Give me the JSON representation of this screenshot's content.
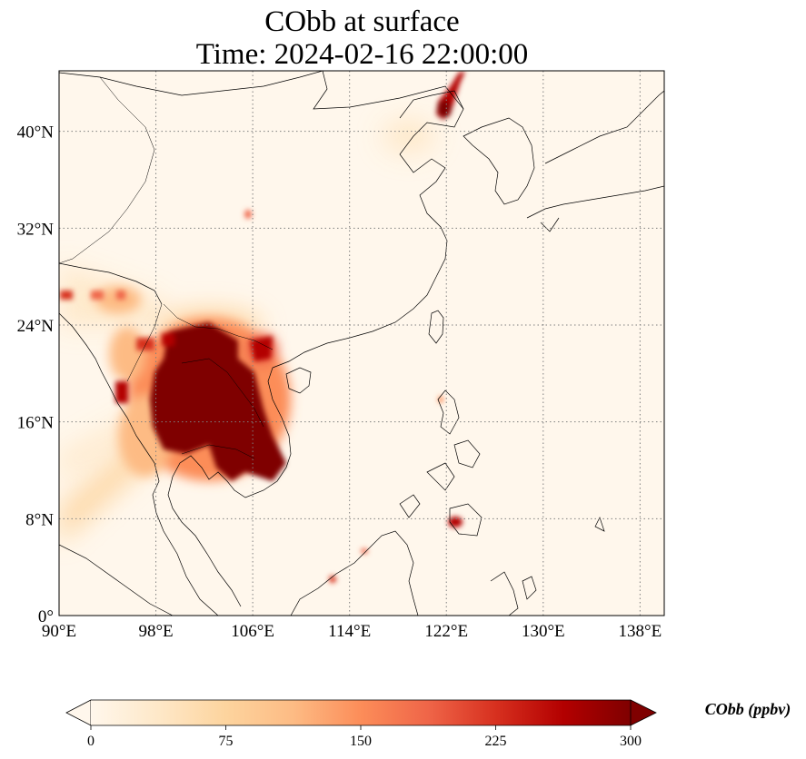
{
  "title": {
    "line1": "CObb at surface",
    "line2": "Time: 2024-02-16 22:00:00"
  },
  "map": {
    "lon_range": [
      90,
      140
    ],
    "lat_range": [
      0,
      45
    ],
    "lon_ticks": [
      {
        "value": 90,
        "label": "90°E"
      },
      {
        "value": 98,
        "label": "98°E"
      },
      {
        "value": 106,
        "label": "106°E"
      },
      {
        "value": 114,
        "label": "114°E"
      },
      {
        "value": 122,
        "label": "122°E"
      },
      {
        "value": 130,
        "label": "130°E"
      },
      {
        "value": 138,
        "label": "138°E"
      }
    ],
    "lat_ticks": [
      {
        "value": 0,
        "label": "0°"
      },
      {
        "value": 8,
        "label": "8°N"
      },
      {
        "value": 16,
        "label": "16°N"
      },
      {
        "value": 24,
        "label": "24°N"
      },
      {
        "value": 32,
        "label": "32°N"
      },
      {
        "value": 40,
        "label": "40°N"
      }
    ],
    "gridlines": "dotted",
    "colormap": "OrRd"
  },
  "colorbar": {
    "title": "CObb (ppbv)",
    "min": 0,
    "max": 300,
    "extend": "both",
    "ticks": [
      {
        "value": 0,
        "label": "0"
      },
      {
        "value": 75,
        "label": "75"
      },
      {
        "value": 150,
        "label": "150"
      },
      {
        "value": 225,
        "label": "225"
      },
      {
        "value": 300,
        "label": "300"
      }
    ],
    "colors": [
      "#fff7ec",
      "#fee8c8",
      "#fdd49e",
      "#fdbb84",
      "#fc8d59",
      "#ef6548",
      "#d7301f",
      "#b30000",
      "#7f0000"
    ]
  }
}
